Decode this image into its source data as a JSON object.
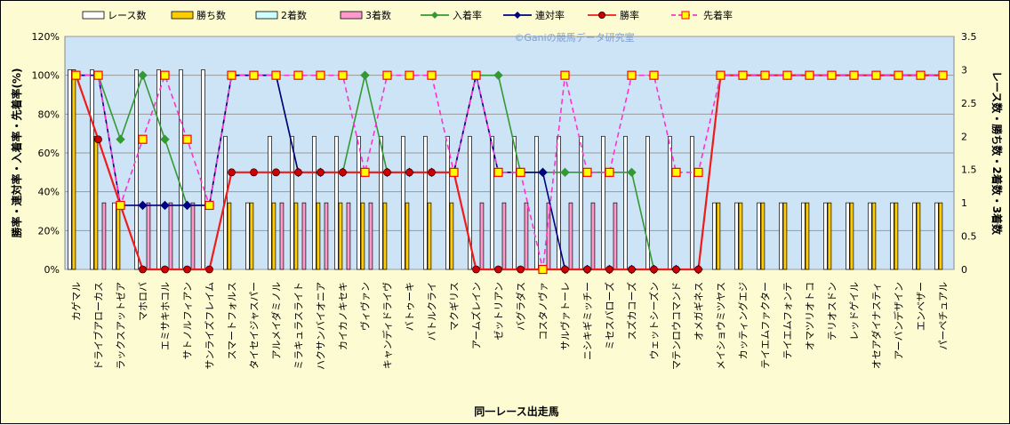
{
  "chart_data": {
    "type": "bar",
    "watermark": "©Ganiの競馬データ研究室",
    "xlabel": "同一レース出走馬",
    "ylabel_left": "勝率・連対率・入着率・先着率(%)",
    "ylabel_right": "レース数・勝ち数・2着数・3着数",
    "ylim_left": [
      0,
      120
    ],
    "ylim_right": [
      0,
      3.5
    ],
    "yticks_left": [
      "0%",
      "20%",
      "40%",
      "60%",
      "80%",
      "100%",
      "120%"
    ],
    "yticks_right": [
      "0",
      "0.5",
      "1",
      "1.5",
      "2",
      "2.5",
      "3",
      "3.5"
    ],
    "grid": true,
    "legend_position": "top",
    "categories": [
      "カゲマル",
      "ドライブアローカス",
      "ラックスアットゼア",
      "マホロバ",
      "エミサキホコル",
      "サトノルフィアン",
      "サンライズフレイム",
      "スマートフォルス",
      "タイセイジャスパー",
      "アルメイダミノル",
      "ミラキュラスライト",
      "ハクサンバイオニア",
      "カイカノキセキ",
      "ヴィヴァン",
      "キャンディドライヴ",
      "バトゥーキ",
      "バトルクライ",
      "マクギリス",
      "アームズレイン",
      "ゼットリアン",
      "バグラダス",
      "コスタノヴァ",
      "サルヴァトーレ",
      "ニシキギミッチー",
      "ミセスバローズ",
      "スズカコーズ",
      "ウェットシーズン",
      "マテンロウコマンド",
      "オメガギネス",
      "メイショウミツヤス",
      "カッティングエジ",
      "テイエムファクター",
      "テイエムフォンテ",
      "オマツリオトコ",
      "テリオスドン",
      "レッドゲイル",
      "オセアダイナスティ",
      "アーバンデザイン",
      "エンベザー",
      "パーペチュアル"
    ],
    "series": [
      {
        "name": "レース数",
        "axis": "right",
        "color": "#ffffff",
        "values": [
          3,
          3,
          1,
          3,
          3,
          3,
          3,
          2,
          1,
          2,
          2,
          2,
          2,
          2,
          2,
          2,
          2,
          2,
          2,
          2,
          2,
          2,
          2,
          2,
          2,
          2,
          2,
          2,
          2,
          1,
          1,
          1,
          1,
          1,
          1,
          1,
          1,
          1,
          1,
          1
        ]
      },
      {
        "name": "勝ち数",
        "axis": "right",
        "color": "#ffcc00",
        "values": [
          3,
          2,
          1,
          0,
          0,
          0,
          0,
          1,
          1,
          1,
          1,
          1,
          1,
          1,
          1,
          1,
          1,
          1,
          0,
          0,
          0,
          0,
          0,
          0,
          0,
          0,
          0,
          0,
          0,
          1,
          1,
          1,
          1,
          1,
          1,
          1,
          1,
          1,
          1,
          1
        ]
      },
      {
        "name": "2着数",
        "axis": "right",
        "color": "#ccffff",
        "values": [
          0,
          0,
          0,
          0,
          0,
          0,
          0,
          0,
          0,
          0,
          0,
          0,
          0,
          0,
          0,
          0,
          0,
          0,
          0,
          0,
          0,
          0,
          0,
          0,
          0,
          0,
          0,
          0,
          0,
          0,
          0,
          0,
          0,
          0,
          0,
          0,
          0,
          0,
          0,
          0
        ]
      },
      {
        "name": "3着数",
        "axis": "right",
        "color": "#ff99cc",
        "values": [
          0,
          1,
          0,
          1,
          1,
          1,
          0,
          0,
          0,
          1,
          1,
          1,
          1,
          1,
          0,
          0,
          0,
          0,
          1,
          1,
          1,
          1,
          1,
          1,
          1,
          0,
          0,
          0,
          0,
          0,
          0,
          0,
          0,
          0,
          0,
          0,
          0,
          0,
          0,
          0
        ]
      },
      {
        "name": "入着率",
        "axis": "left",
        "color": "#339933",
        "marker": "diamond",
        "values": [
          100,
          100,
          67,
          100,
          67,
          33,
          33,
          100,
          100,
          100,
          50,
          50,
          50,
          100,
          50,
          50,
          50,
          50,
          100,
          100,
          50,
          50,
          50,
          50,
          50,
          50,
          0,
          0,
          0,
          100,
          100,
          100,
          100,
          100,
          100,
          100,
          100,
          100,
          100,
          100
        ]
      },
      {
        "name": "連対率",
        "axis": "left",
        "color": "#000080",
        "marker": "diamond",
        "values": [
          100,
          100,
          33,
          33,
          33,
          33,
          33,
          100,
          100,
          100,
          50,
          50,
          50,
          50,
          50,
          50,
          50,
          50,
          100,
          50,
          50,
          50,
          0,
          0,
          0,
          0,
          0,
          0,
          0,
          100,
          100,
          100,
          100,
          100,
          100,
          100,
          100,
          100,
          100,
          100
        ]
      },
      {
        "name": "勝率",
        "axis": "left",
        "color": "#ee1c1c",
        "marker": "circle",
        "values": [
          100,
          67,
          33,
          0,
          0,
          0,
          0,
          50,
          50,
          50,
          50,
          50,
          50,
          50,
          50,
          50,
          50,
          50,
          0,
          0,
          0,
          0,
          0,
          0,
          0,
          0,
          0,
          0,
          0,
          100,
          100,
          100,
          100,
          100,
          100,
          100,
          100,
          100,
          100,
          100
        ]
      },
      {
        "name": "先着率",
        "axis": "left",
        "color": "#ff33cc",
        "marker": "square",
        "dashed": true,
        "values": [
          100,
          100,
          33,
          67,
          100,
          67,
          33,
          100,
          100,
          100,
          100,
          100,
          100,
          50,
          100,
          100,
          100,
          50,
          100,
          50,
          50,
          0,
          100,
          50,
          50,
          100,
          100,
          50,
          50,
          100,
          100,
          100,
          100,
          100,
          100,
          100,
          100,
          100,
          100,
          100
        ]
      }
    ]
  }
}
